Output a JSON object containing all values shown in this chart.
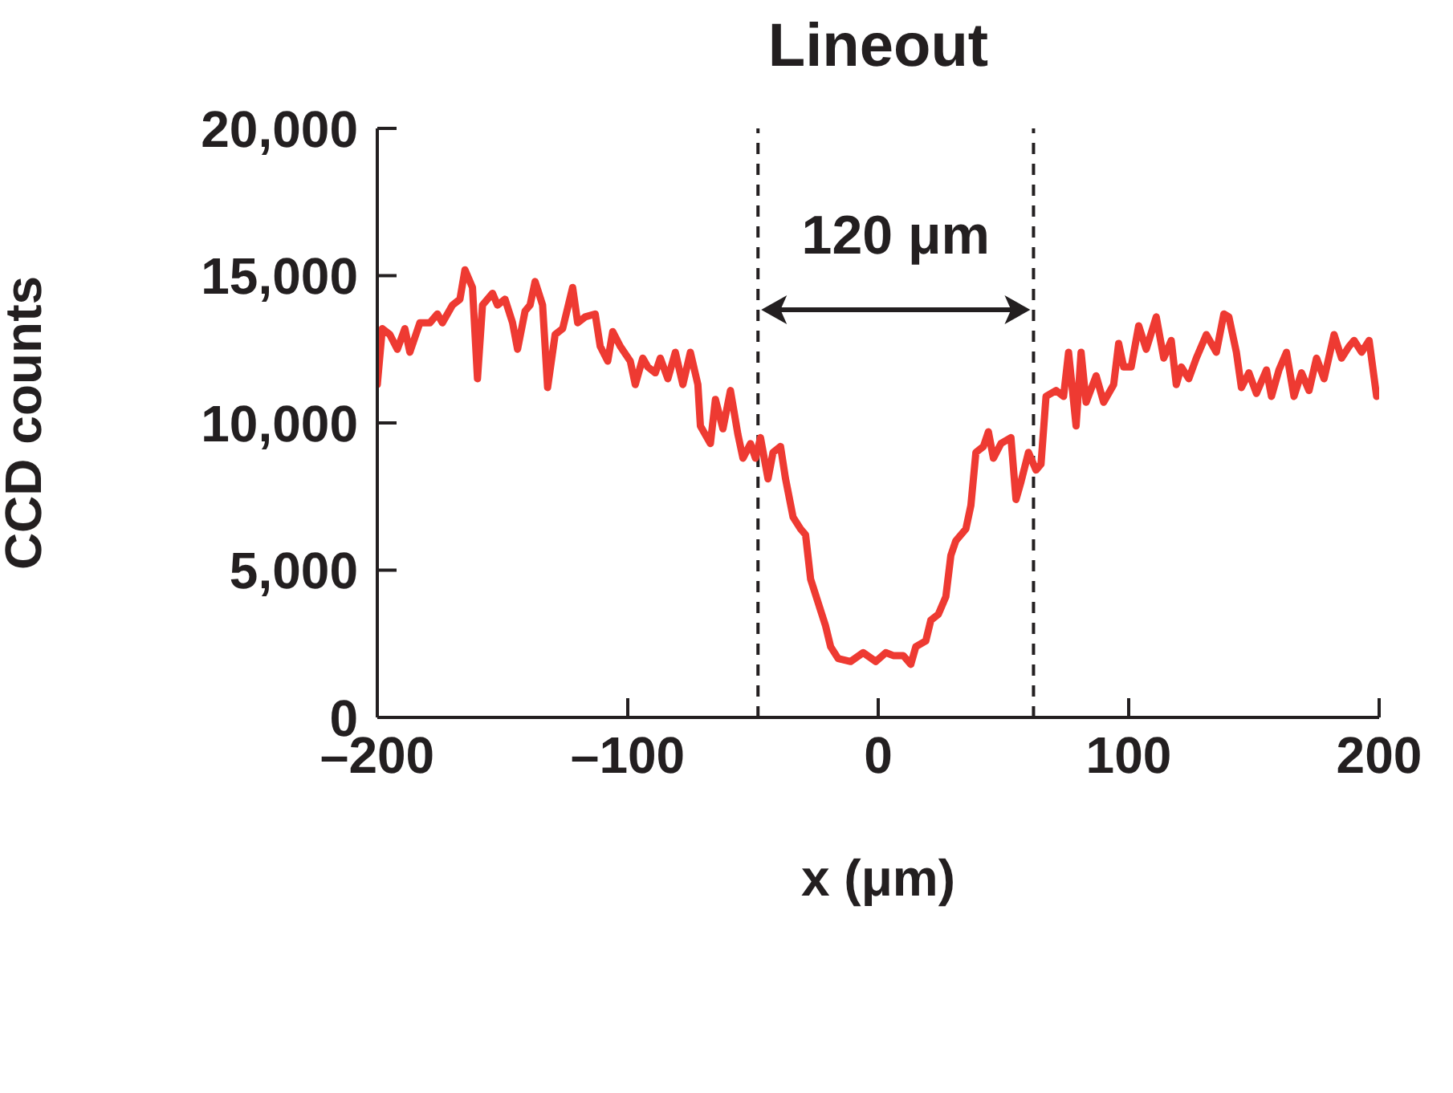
{
  "chart_data": {
    "type": "line",
    "title": "Lineout",
    "xlabel": "x (μm)",
    "ylabel": "CCD counts",
    "xlim": [
      -200,
      200
    ],
    "xticks": [
      {
        "value": -200,
        "label": "–200"
      },
      {
        "value": -100,
        "label": "–100"
      },
      0,
      100,
      200
    ],
    "ylim": [
      0,
      20000
    ],
    "yticks": [
      {
        "value": 0,
        "label": "0"
      },
      {
        "value": 5000,
        "label": "5,000"
      },
      {
        "value": 10000,
        "label": "10,000"
      },
      {
        "value": 15000,
        "label": "15,000"
      },
      {
        "value": 20000,
        "label": "20,000"
      }
    ],
    "marker": "none",
    "line_style": "solid",
    "ref_lines": [
      {
        "axis": "x",
        "value": -48,
        "color": "#231f20",
        "line_style": "dashed"
      },
      {
        "axis": "x",
        "value": 62,
        "color": "#231f20",
        "line_style": "dashed"
      }
    ],
    "annotations": [
      "120 μm"
    ],
    "series": [
      {
        "color": "#ee3a32",
        "x": [
          -200,
          -198,
          -195,
          -192,
          -189,
          -187,
          -183,
          -179,
          -176,
          -174,
          -170,
          -167,
          -165,
          -162,
          -160,
          -158,
          -154,
          -152,
          -149,
          -146,
          -144,
          -141,
          -139,
          -137,
          -134,
          -132,
          -129,
          -126,
          -122,
          -120,
          -117,
          -113,
          -111,
          -108,
          -106,
          -103,
          -99,
          -97,
          -94,
          -92,
          -89,
          -87,
          -84,
          -81,
          -78,
          -75,
          -72,
          -71,
          -67,
          -65,
          -62,
          -59,
          -56,
          -54,
          -51,
          -49,
          -47,
          -44,
          -42,
          -39,
          -37,
          -34,
          -31,
          -29,
          -27,
          -24,
          -21,
          -19,
          -16,
          -11,
          -6,
          -1,
          3,
          6,
          10,
          13,
          15,
          19,
          21,
          24,
          27,
          29,
          31,
          35,
          37,
          39,
          42,
          44,
          46,
          49,
          53,
          55,
          57,
          60,
          63,
          65,
          67,
          71,
          74,
          76,
          79,
          81,
          83,
          87,
          90,
          94,
          96,
          98,
          101,
          104,
          107,
          111,
          114,
          117,
          119,
          121,
          124,
          127,
          131,
          135,
          138,
          140,
          143,
          145,
          148,
          151,
          155,
          157,
          160,
          163,
          166,
          169,
          172,
          175,
          178,
          182,
          185,
          188,
          190,
          193,
          196,
          199
        ],
        "values": [
          11300,
          13200,
          13000,
          12500,
          13200,
          12400,
          13400,
          13400,
          13700,
          13400,
          14000,
          14200,
          15200,
          14600,
          11500,
          14000,
          14400,
          14000,
          14200,
          13400,
          12500,
          13800,
          14000,
          14800,
          14000,
          11200,
          13000,
          13200,
          14600,
          13400,
          13600,
          13700,
          12600,
          12100,
          13100,
          12600,
          12100,
          11300,
          12200,
          11900,
          11700,
          12200,
          11500,
          12400,
          11300,
          12400,
          11300,
          9900,
          9300,
          10800,
          9800,
          11100,
          9600,
          8800,
          9300,
          8800,
          9500,
          8100,
          9000,
          9200,
          8100,
          6800,
          6400,
          6200,
          4700,
          3900,
          3100,
          2400,
          2000,
          1900,
          2200,
          1900,
          2200,
          2100,
          2100,
          1800,
          2400,
          2600,
          3300,
          3500,
          4100,
          5500,
          6000,
          6400,
          7200,
          9000,
          9200,
          9700,
          8800,
          9300,
          9500,
          7400,
          8000,
          9000,
          8400,
          8600,
          10900,
          11100,
          10900,
          12400,
          9900,
          12400,
          10700,
          11600,
          10700,
          11300,
          12700,
          11900,
          11900,
          13300,
          12500,
          13600,
          12200,
          12800,
          11300,
          11900,
          11500,
          12200,
          13000,
          12400,
          13700,
          13600,
          12400,
          11200,
          11700,
          11000,
          11800,
          10900,
          11800,
          12400,
          10900,
          11700,
          11100,
          12200,
          11500,
          13000,
          12200,
          12600,
          12800,
          12400,
          12800,
          10900
        ]
      }
    ]
  }
}
